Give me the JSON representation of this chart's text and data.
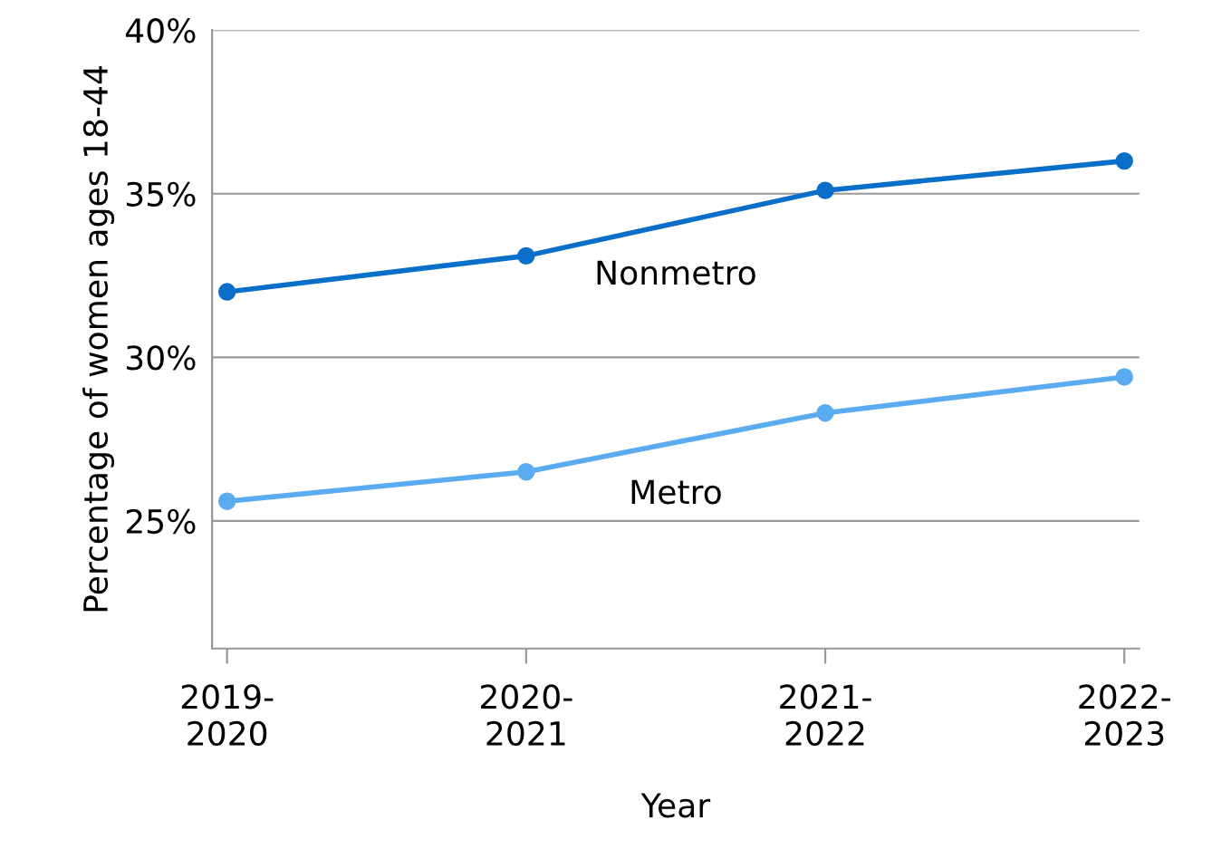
{
  "chart_data": {
    "type": "line",
    "xlabel": "Year",
    "ylabel": "Percentage of women ages 18-44",
    "categories": [
      "2019-\n2020",
      "2020-\n2021",
      "2021-\n2022",
      "2022-\n2023"
    ],
    "series": [
      {
        "name": "Nonmetro",
        "color": "#0a6fc9",
        "values": [
          32.0,
          33.1,
          35.1,
          36.0
        ]
      },
      {
        "name": "Metro",
        "color": "#5aabf0",
        "values": [
          25.6,
          26.5,
          28.3,
          29.4
        ]
      }
    ],
    "ylim": [
      21.1,
      40
    ],
    "yticks": [
      {
        "value": 25,
        "label": "25%"
      },
      {
        "value": 30,
        "label": "30%"
      },
      {
        "value": 35,
        "label": "35%"
      },
      {
        "value": 40,
        "label": "40%"
      }
    ],
    "grid": "y",
    "marker": "circle",
    "line_style": "solid",
    "legend": false
  }
}
